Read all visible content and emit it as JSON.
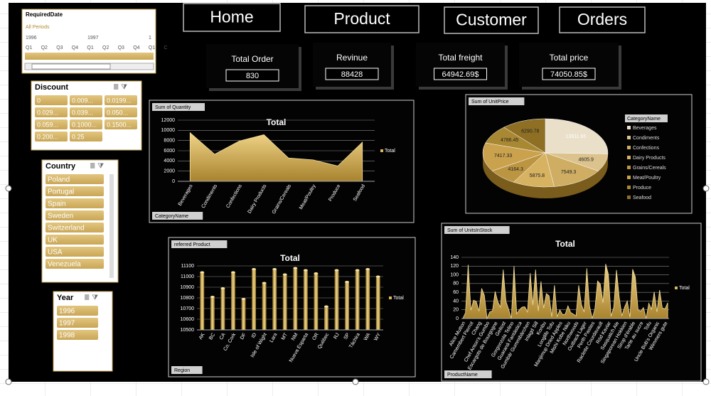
{
  "nav": [
    "Home",
    "Product",
    "Customer",
    "Orders"
  ],
  "kpis": [
    {
      "label": "Total Order",
      "value": "830"
    },
    {
      "label": "Revinue",
      "value": "88428"
    },
    {
      "label": "Total freight",
      "value": "64942.69$"
    },
    {
      "label": "Total price",
      "value": "74050.85$"
    }
  ],
  "date_slicer": {
    "title": "RequiredDate",
    "all": "All Periods",
    "years": [
      "1996",
      "1997",
      "1"
    ],
    "quarters": [
      "Q1",
      "Q2",
      "Q3",
      "Q4",
      "Q1",
      "Q2",
      "Q3",
      "Q4",
      "Q1",
      "C"
    ]
  },
  "slicers": [
    {
      "title": "Discount",
      "items": [
        "0",
        "0.009...",
        "0.0199...",
        "0.029...",
        "0.039...",
        "0.050...",
        "0.059...",
        "0.1000...",
        "0.1500...",
        "0.200...",
        "0.25"
      ]
    },
    {
      "title": "Country",
      "items": [
        "Poland",
        "Portugal",
        "Spain",
        "Sweden",
        "Switzerland",
        "UK",
        "USA",
        "Venezuela"
      ]
    },
    {
      "title": "Year",
      "items": [
        "1996",
        "1997",
        "1998"
      ]
    }
  ],
  "chart_data": [
    {
      "type": "area",
      "field_button": "Sum of Quantity",
      "title": "Total",
      "axis_button": "CategoryName",
      "categories": [
        "Beverages",
        "Condiments",
        "Confections",
        "Dairy Products",
        "Grains/Cereals",
        "Meat/Poultry",
        "Produce",
        "Seafood"
      ],
      "series": [
        {
          "name": "Total",
          "color": "#d9b65c",
          "values": [
            9532,
            5298,
            7906,
            9149,
            4562,
            4199,
            2990,
            7681
          ]
        }
      ],
      "ylim": [
        0,
        12000
      ],
      "yticks": [
        0,
        2000,
        4000,
        6000,
        8000,
        10000,
        12000
      ],
      "grid": true
    },
    {
      "type": "pie",
      "field_button": "Sum of UnitPrice",
      "legend_title": "CategoryName",
      "categories": [
        "Beverages",
        "Condiments",
        "Confections",
        "Dairy Products",
        "Grains/Cereals",
        "Meat/Poultry",
        "Produce",
        "Seafood"
      ],
      "values": [
        13911.65,
        4605.9,
        7549.3,
        5875.8,
        4164.3,
        7417.33,
        4786.45,
        6290.78
      ],
      "colors": [
        "#eadfc9",
        "#dcc38d",
        "#cfae63",
        "#d6b261",
        "#bb9542",
        "#caa24e",
        "#a98833",
        "#8e6f24"
      ]
    },
    {
      "type": "bar",
      "field_button": "referred Product",
      "title": "Total",
      "axis_button": "Region",
      "categories": [
        "AK",
        "BC",
        "CA",
        "Co. Cork",
        "DF",
        "ID",
        "Isle of Wight",
        "Lara",
        "MT",
        "NM",
        "Nueva Esparta",
        "OR",
        "Québec",
        "RJ",
        "SP",
        "Táchira",
        "WA",
        "WY"
      ],
      "series": [
        {
          "name": "Total",
          "color": "#d9b65c",
          "values": [
            11040,
            10810,
            10890,
            11040,
            10790,
            11070,
            10940,
            11070,
            11020,
            11080,
            11060,
            11030,
            10720,
            11060,
            10950,
            11060,
            11070,
            11000
          ]
        }
      ],
      "ylim": [
        10500,
        11100
      ],
      "yticks": [
        10500,
        10600,
        10700,
        10800,
        10900,
        11000,
        11100
      ],
      "grid": true
    },
    {
      "type": "area",
      "field_button": "Sum of UnitsInStock",
      "title": "Total",
      "axis_button": "ProductName",
      "categories": [
        "Alice Mutton",
        null,
        null,
        "Camembert Pierrot",
        null,
        null,
        "Chang",
        null,
        null,
        "Chef Anton's Gumbo",
        null,
        null,
        "Escargots de Bourgogne",
        null,
        null,
        "Geitost",
        null,
        null,
        "Gorgonzola Telino",
        null,
        null,
        "Guaraná Fantástica",
        null,
        null,
        "Gumbär Gummibärchen",
        null,
        null,
        "Inlagd Sill",
        null,
        null,
        "Konbu",
        null,
        null,
        "Longlife Tofu",
        null,
        null,
        "Manjimup Dried Apples",
        null,
        null,
        "Mishi Kobe Niku",
        null,
        null,
        "Northwoods",
        null,
        null,
        "Outback Lager",
        null,
        null,
        "Perth Pasties",
        null,
        null,
        "Raclette Courdavault",
        null,
        null,
        "Röd Kaviar",
        null,
        null,
        "Sasquatch Ale",
        null,
        null,
        "Singaporean Hokkien",
        null,
        null,
        "Sirop d'érable",
        null,
        null,
        "Tarte au sucre",
        null,
        null,
        "Tofu",
        null,
        null,
        "Uncle Bob's Organic",
        null,
        null,
        "Wimmers gute",
        null
      ],
      "series": [
        {
          "name": "Total",
          "color": "#d9b65c",
          "values": [
            0,
            13,
            123,
            19,
            42,
            39,
            17,
            69,
            53,
            0,
            15,
            17,
            62,
            38,
            26,
            112,
            39,
            21,
            0,
            120,
            11,
            20,
            26,
            27,
            15,
            104,
            31,
            112,
            17,
            85,
            24,
            57,
            52,
            4,
            76,
            4,
            20,
            9,
            10,
            29,
            14,
            10,
            6,
            76,
            32,
            15,
            115,
            29,
            0,
            22,
            86,
            79,
            36,
            125,
            101,
            5,
            26,
            111,
            49,
            6,
            26,
            40,
            3,
            113,
            95,
            20,
            17,
            25,
            0,
            35,
            21,
            61,
            15,
            65,
            24,
            22,
            36
          ]
        }
      ],
      "ylim": [
        0,
        140
      ],
      "yticks": [
        0,
        20,
        40,
        60,
        80,
        100,
        120,
        140
      ],
      "grid": true
    }
  ]
}
